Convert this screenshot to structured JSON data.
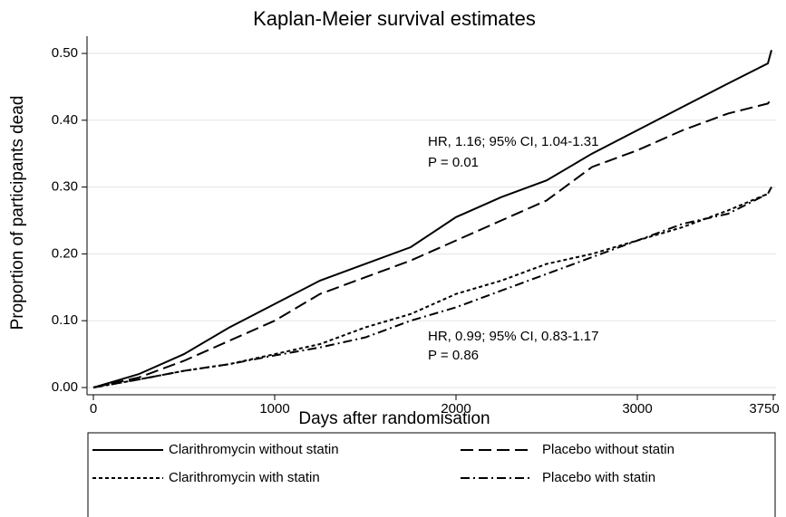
{
  "chart_data": {
    "type": "line",
    "title": "Kaplan-Meier survival estimates",
    "x_label": "Days after randomisation",
    "y_label": "Proportion of participants dead",
    "x": [
      0,
      250,
      500,
      750,
      1000,
      1250,
      1500,
      1750,
      2000,
      2250,
      2500,
      2750,
      3000,
      3250,
      3500,
      3720,
      3740
    ],
    "series": [
      {
        "name": "Clarithromycin without statin",
        "color": "#000000",
        "dash": "solid",
        "values": [
          0,
          0.02,
          0.05,
          0.09,
          0.125,
          0.16,
          0.185,
          0.21,
          0.255,
          0.285,
          0.31,
          0.35,
          0.385,
          0.42,
          0.455,
          0.485,
          0.505
        ]
      },
      {
        "name": "Placebo without statin",
        "color": "#000000",
        "dash": "long-dash",
        "values": [
          0,
          0.015,
          0.04,
          0.07,
          0.1,
          0.14,
          0.165,
          0.19,
          0.22,
          0.25,
          0.28,
          0.33,
          0.355,
          0.385,
          0.41,
          0.425,
          0.432
        ]
      },
      {
        "name": "Clarithromycin with statin",
        "color": "#000000",
        "dash": "short-dash",
        "values": [
          0,
          0.012,
          0.025,
          0.035,
          0.05,
          0.065,
          0.09,
          0.11,
          0.14,
          0.16,
          0.185,
          0.2,
          0.22,
          0.24,
          0.265,
          0.29,
          0.3
        ]
      },
      {
        "name": "Placebo with statin",
        "color": "#000000",
        "dash": "dash-dot",
        "values": [
          0,
          0.012,
          0.025,
          0.035,
          0.048,
          0.06,
          0.075,
          0.1,
          0.12,
          0.145,
          0.17,
          0.195,
          0.22,
          0.245,
          0.26,
          0.29,
          0.3
        ]
      }
    ],
    "annotations": [
      "HR, 1.16; 95% CI, 1.04-1.31",
      "P = 0.01",
      "HR, 0.99; 95% CI, 0.83-1.17",
      "P = 0.86"
    ],
    "xlim": [
      0,
      3750
    ],
    "xticks": [
      0,
      1000,
      2000,
      3000,
      3750
    ],
    "ylim": [
      0,
      0.5
    ],
    "yticks": [
      {
        "value": 0,
        "label": "0.00"
      },
      {
        "value": 0.1,
        "label": "0.10"
      },
      {
        "value": 0.2,
        "label": "0.20"
      },
      {
        "value": 0.3,
        "label": "0.30"
      },
      {
        "value": 0.4,
        "label": "0.40"
      },
      {
        "value": 0.5,
        "label": "0.50"
      }
    ],
    "grid": true,
    "legend": "bottom"
  }
}
